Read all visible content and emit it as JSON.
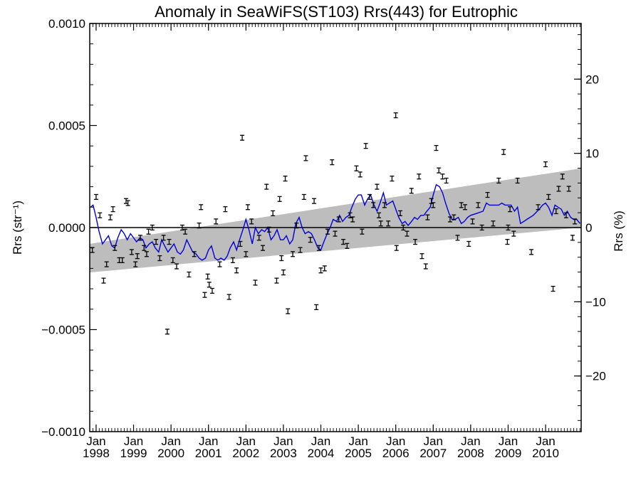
{
  "chart_data": {
    "type": "scatter",
    "title": "Anomaly in SeaWiFS(ST103) Rrs(443) for Eutrophic",
    "ylabel_left": "Rrs (str⁻¹)",
    "ylabel_right": "Rrs (%)",
    "xlim": [
      1997.83,
      2010.95
    ],
    "ylim_left": [
      -0.001,
      0.001
    ],
    "ylim_right": [
      -27.5,
      27.5
    ],
    "left_ticks": [
      {
        "value": 0.001,
        "label": "0.0010"
      },
      {
        "value": 0.0005,
        "label": "0.0005"
      },
      {
        "value": 0.0,
        "label": "0.0000"
      },
      {
        "value": -0.0005,
        "label": "−0.0005"
      },
      {
        "value": -0.001,
        "label": "−0.0010"
      }
    ],
    "right_ticks": [
      {
        "value": 20,
        "label": "20"
      },
      {
        "value": 10,
        "label": "10"
      },
      {
        "value": 0,
        "label": "0"
      },
      {
        "value": -10,
        "label": "−10"
      },
      {
        "value": -20,
        "label": "−20"
      }
    ],
    "x_ticks": [
      {
        "value": 1998,
        "month": "Jan",
        "year": "1998"
      },
      {
        "value": 1999,
        "month": "Jan",
        "year": "1999"
      },
      {
        "value": 2000,
        "month": "Jan",
        "year": "2000"
      },
      {
        "value": 2001,
        "month": "Jan",
        "year": "2001"
      },
      {
        "value": 2002,
        "month": "Jan",
        "year": "2002"
      },
      {
        "value": 2003,
        "month": "Jan",
        "year": "2003"
      },
      {
        "value": 2004,
        "month": "Jan",
        "year": "2004"
      },
      {
        "value": 2005,
        "month": "Jan",
        "year": "2005"
      },
      {
        "value": 2006,
        "month": "Jan",
        "year": "2006"
      },
      {
        "value": 2007,
        "month": "Jan",
        "year": "2007"
      },
      {
        "value": 2008,
        "month": "Jan",
        "year": "2008"
      },
      {
        "value": 2009,
        "month": "Jan",
        "year": "2009"
      },
      {
        "value": 2010,
        "month": "Jan",
        "year": "2010"
      }
    ],
    "trend_band": {
      "x": [
        1997.83,
        2010.95
      ],
      "lower": [
        -0.00022,
        0.0
      ],
      "upper": [
        -8e-05,
        0.00029
      ],
      "color": "#bdbdbd"
    },
    "zero_line": 0.0,
    "points": [
      [
        1997.9,
        -0.00011
      ],
      [
        1998.0,
        0.00015
      ],
      [
        1998.1,
        6e-05
      ],
      [
        1998.2,
        -0.00026
      ],
      [
        1998.28,
        -0.00018
      ],
      [
        1998.38,
        5e-05
      ],
      [
        1998.45,
        9e-05
      ],
      [
        1998.5,
        -0.0001
      ],
      [
        1998.62,
        -0.00016
      ],
      [
        1998.7,
        -0.00016
      ],
      [
        1998.8,
        0.00013
      ],
      [
        1998.85,
        0.00012
      ],
      [
        1998.95,
        -0.00012
      ],
      [
        1999.05,
        -0.00018
      ],
      [
        1999.1,
        -0.00014
      ],
      [
        1999.18,
        -5e-05
      ],
      [
        1999.28,
        -0.0001
      ],
      [
        1999.35,
        -0.00013
      ],
      [
        1999.4,
        -2e-05
      ],
      [
        1999.5,
        0.0
      ],
      [
        1999.6,
        -7e-05
      ],
      [
        1999.7,
        -0.00015
      ],
      [
        1999.8,
        -5e-05
      ],
      [
        1999.9,
        -0.00051
      ],
      [
        1999.95,
        -7e-05
      ],
      [
        2000.05,
        -0.00016
      ],
      [
        2000.15,
        -0.00019
      ],
      [
        2000.3,
        0.0
      ],
      [
        2000.38,
        -2e-05
      ],
      [
        2000.48,
        -0.00023
      ],
      [
        2000.62,
        -0.00013
      ],
      [
        2000.75,
        1e-05
      ],
      [
        2000.8,
        0.0001
      ],
      [
        2000.9,
        -0.00033
      ],
      [
        2000.98,
        -0.00024
      ],
      [
        2001.02,
        -0.00028
      ],
      [
        2001.1,
        -0.00031
      ],
      [
        2001.2,
        3e-05
      ],
      [
        2001.3,
        -0.00018
      ],
      [
        2001.45,
        9e-05
      ],
      [
        2001.55,
        -0.00034
      ],
      [
        2001.65,
        -0.00016
      ],
      [
        2001.75,
        -0.00021
      ],
      [
        2001.85,
        -8e-05
      ],
      [
        2001.9,
        0.00044
      ],
      [
        2002.0,
        -0.00013
      ],
      [
        2002.05,
        0.0001
      ],
      [
        2002.15,
        3e-05
      ],
      [
        2002.25,
        -0.00027
      ],
      [
        2002.35,
        -5e-05
      ],
      [
        2002.45,
        -0.0001
      ],
      [
        2002.55,
        0.0002
      ],
      [
        2002.62,
        -1e-05
      ],
      [
        2002.72,
        7e-05
      ],
      [
        2002.82,
        -0.00026
      ],
      [
        2002.9,
        0.00014
      ],
      [
        2002.95,
        -0.00015
      ],
      [
        2003.0,
        -0.00022
      ],
      [
        2003.05,
        0.00024
      ],
      [
        2003.12,
        -0.00041
      ],
      [
        2003.25,
        -0.00013
      ],
      [
        2003.35,
        1e-05
      ],
      [
        2003.45,
        -0.00011
      ],
      [
        2003.55,
        0.00015
      ],
      [
        2003.6,
        0.00034
      ],
      [
        2003.72,
        -6e-05
      ],
      [
        2003.82,
        0.00013
      ],
      [
        2003.88,
        -0.00039
      ],
      [
        2003.95,
        -0.0001
      ],
      [
        2004.0,
        -0.00021
      ],
      [
        2004.1,
        -0.0002
      ],
      [
        2004.18,
        -2e-05
      ],
      [
        2004.3,
        0.00032
      ],
      [
        2004.38,
        -3e-05
      ],
      [
        2004.48,
        4e-05
      ],
      [
        2004.6,
        -7e-05
      ],
      [
        2004.7,
        -9e-05
      ],
      [
        2004.78,
        6e-05
      ],
      [
        2004.85,
        4e-05
      ],
      [
        2004.95,
        0.00029
      ],
      [
        2005.05,
        0.00026
      ],
      [
        2005.1,
        -2e-05
      ],
      [
        2005.2,
        0.0004
      ],
      [
        2005.3,
        0.00015
      ],
      [
        2005.4,
        0.00011
      ],
      [
        2005.5,
        0.0002
      ],
      [
        2005.55,
        6e-05
      ],
      [
        2005.6,
        2e-05
      ],
      [
        2005.7,
        0.00011
      ],
      [
        2005.8,
        2e-05
      ],
      [
        2005.9,
        0.00024
      ],
      [
        2006.0,
        0.00055
      ],
      [
        2006.02,
        -0.0001
      ],
      [
        2006.12,
        7e-05
      ],
      [
        2006.2,
        0.0
      ],
      [
        2006.3,
        -3e-05
      ],
      [
        2006.42,
        0.00018
      ],
      [
        2006.52,
        -7e-05
      ],
      [
        2006.62,
        0.00025
      ],
      [
        2006.7,
        -0.00014
      ],
      [
        2006.8,
        -0.00019
      ],
      [
        2006.85,
        5e-05
      ],
      [
        2006.95,
        0.00013
      ],
      [
        2007.0,
        0.00011
      ],
      [
        2007.08,
        0.00039
      ],
      [
        2007.15,
        0.00028
      ],
      [
        2007.25,
        0.00025
      ],
      [
        2007.35,
        0.00023
      ],
      [
        2007.45,
        4e-05
      ],
      [
        2007.55,
        5e-05
      ],
      [
        2007.65,
        -5e-05
      ],
      [
        2007.75,
        0.00011
      ],
      [
        2007.85,
        0.0001
      ],
      [
        2007.95,
        -8e-05
      ],
      [
        2008.05,
        3e-05
      ],
      [
        2008.2,
        0.00011
      ],
      [
        2008.3,
        0.0
      ],
      [
        2008.45,
        0.00016
      ],
      [
        2008.6,
        2e-05
      ],
      [
        2008.75,
        0.00023
      ],
      [
        2008.88,
        0.00037
      ],
      [
        2008.98,
        -7e-05
      ],
      [
        2009.0,
        0.0
      ],
      [
        2009.05,
        9e-05
      ],
      [
        2009.15,
        -3e-05
      ],
      [
        2009.25,
        0.00023
      ],
      [
        2009.62,
        -0.00012
      ],
      [
        2009.8,
        0.0001
      ],
      [
        2010.0,
        0.00031
      ],
      [
        2010.08,
        0.00015
      ],
      [
        2010.2,
        -0.0003
      ],
      [
        2010.28,
        8e-05
      ],
      [
        2010.35,
        0.00019
      ],
      [
        2010.45,
        0.00025
      ],
      [
        2010.55,
        6e-05
      ],
      [
        2010.62,
        0.00019
      ],
      [
        2010.72,
        -5e-05
      ],
      [
        2010.78,
        3e-05
      ]
    ],
    "running_mean": [
      [
        1997.85,
        0.0001
      ],
      [
        1997.92,
        0.00011
      ],
      [
        1998.0,
        5e-05
      ],
      [
        1998.08,
        -2e-05
      ],
      [
        1998.17,
        -8e-05
      ],
      [
        1998.25,
        -6e-05
      ],
      [
        1998.33,
        -4e-05
      ],
      [
        1998.42,
        -9e-05
      ],
      [
        1998.5,
        -0.0001
      ],
      [
        1998.58,
        -5e-05
      ],
      [
        1998.67,
        -1e-05
      ],
      [
        1998.75,
        -3e-05
      ],
      [
        1998.83,
        -6e-05
      ],
      [
        1998.92,
        -3e-05
      ],
      [
        1999.0,
        -5e-05
      ],
      [
        1999.08,
        -7e-05
      ],
      [
        1999.17,
        -5e-05
      ],
      [
        1999.25,
        -6e-05
      ],
      [
        1999.33,
        -0.0001
      ],
      [
        1999.42,
        -8e-05
      ],
      [
        1999.5,
        -7e-05
      ],
      [
        1999.58,
        -0.0001
      ],
      [
        1999.67,
        -0.00012
      ],
      [
        1999.75,
        -6e-05
      ],
      [
        1999.83,
        -9e-05
      ],
      [
        1999.92,
        -0.00012
      ],
      [
        2000.0,
        -0.0001
      ],
      [
        2000.08,
        -8e-05
      ],
      [
        2000.17,
        -0.00012
      ],
      [
        2000.25,
        -0.00013
      ],
      [
        2000.33,
        -0.00011
      ],
      [
        2000.42,
        -6e-05
      ],
      [
        2000.5,
        -9e-05
      ],
      [
        2000.58,
        -0.00012
      ],
      [
        2000.67,
        -0.00013
      ],
      [
        2000.75,
        -0.00015
      ],
      [
        2000.83,
        -0.00016
      ],
      [
        2000.92,
        -0.00015
      ],
      [
        2001.0,
        -0.00011
      ],
      [
        2001.08,
        -9e-05
      ],
      [
        2001.17,
        -0.00015
      ],
      [
        2001.25,
        -0.00016
      ],
      [
        2001.33,
        -0.00015
      ],
      [
        2001.42,
        -0.00016
      ],
      [
        2001.5,
        -0.00014
      ],
      [
        2001.58,
        -0.0001
      ],
      [
        2001.67,
        -7e-05
      ],
      [
        2001.75,
        -0.00011
      ],
      [
        2001.83,
        -6e-05
      ],
      [
        2001.92,
        -1e-05
      ],
      [
        2002.0,
        4e-05
      ],
      [
        2002.08,
        -1e-05
      ],
      [
        2002.17,
        -8e-05
      ],
      [
        2002.25,
        0.0
      ],
      [
        2002.33,
        -3e-05
      ],
      [
        2002.42,
        -1e-05
      ],
      [
        2002.5,
        -2e-05
      ],
      [
        2002.58,
        0.0
      ],
      [
        2002.67,
        -6e-05
      ],
      [
        2002.75,
        -4e-05
      ],
      [
        2002.83,
        -1e-05
      ],
      [
        2002.92,
        -6e-05
      ],
      [
        2003.0,
        -6e-05
      ],
      [
        2003.08,
        -4e-05
      ],
      [
        2003.17,
        -8e-05
      ],
      [
        2003.25,
        -6e-05
      ],
      [
        2003.33,
        2e-05
      ],
      [
        2003.42,
        5e-05
      ],
      [
        2003.5,
        0.0
      ],
      [
        2003.58,
        -3e-05
      ],
      [
        2003.67,
        -2e-05
      ],
      [
        2003.75,
        -3e-05
      ],
      [
        2003.83,
        -6e-05
      ],
      [
        2003.92,
        -0.0001
      ],
      [
        2004.0,
        -0.00011
      ],
      [
        2004.08,
        -7e-05
      ],
      [
        2004.17,
        -3e-05
      ],
      [
        2004.25,
        0.0
      ],
      [
        2004.33,
        4e-05
      ],
      [
        2004.42,
        3e-05
      ],
      [
        2004.5,
        6e-05
      ],
      [
        2004.58,
        3e-05
      ],
      [
        2004.67,
        5e-05
      ],
      [
        2004.75,
        6e-05
      ],
      [
        2004.83,
        0.0001
      ],
      [
        2004.92,
        0.00014
      ],
      [
        2005.0,
        0.00016
      ],
      [
        2005.08,
        0.00016
      ],
      [
        2005.17,
        0.00011
      ],
      [
        2005.25,
        0.00014
      ],
      [
        2005.33,
        0.00016
      ],
      [
        2005.42,
        0.00011
      ],
      [
        2005.5,
        8e-05
      ],
      [
        2005.58,
        0.00012
      ],
      [
        2005.67,
        0.00017
      ],
      [
        2005.75,
        0.00011
      ],
      [
        2005.83,
        0.00012
      ],
      [
        2005.92,
        0.00013
      ],
      [
        2006.0,
        9e-05
      ],
      [
        2006.08,
        5e-05
      ],
      [
        2006.17,
        2e-05
      ],
      [
        2006.25,
        3e-05
      ],
      [
        2006.33,
        1e-05
      ],
      [
        2006.42,
        3e-05
      ],
      [
        2006.5,
        5e-05
      ],
      [
        2006.58,
        4e-05
      ],
      [
        2006.67,
        6e-05
      ],
      [
        2006.75,
        6e-05
      ],
      [
        2006.83,
        8e-05
      ],
      [
        2006.92,
        0.0001
      ],
      [
        2007.0,
        0.00016
      ],
      [
        2007.08,
        0.00021
      ],
      [
        2007.17,
        0.0002
      ],
      [
        2007.25,
        0.00017
      ],
      [
        2007.33,
        0.00012
      ],
      [
        2007.42,
        7e-05
      ],
      [
        2007.5,
        4e-05
      ],
      [
        2007.58,
        4e-05
      ],
      [
        2007.67,
        5e-05
      ],
      [
        2007.75,
        2e-05
      ],
      [
        2007.83,
        3e-05
      ],
      [
        2007.92,
        5e-05
      ],
      [
        2008.0,
        6e-05
      ],
      [
        2008.17,
        7e-05
      ],
      [
        2008.33,
        8e-05
      ],
      [
        2008.42,
        0.00012
      ],
      [
        2008.5,
        0.00011
      ],
      [
        2008.58,
        0.00011
      ],
      [
        2008.67,
        0.00011
      ],
      [
        2008.75,
        0.00011
      ],
      [
        2008.83,
        0.00012
      ],
      [
        2008.92,
        0.00011
      ],
      [
        2009.0,
        0.00011
      ],
      [
        2009.08,
        0.00011
      ],
      [
        2009.17,
        8e-05
      ],
      [
        2009.25,
        0.0001
      ],
      [
        2009.33,
        2e-05
      ],
      [
        2009.42,
        3e-05
      ],
      [
        2009.5,
        4e-05
      ],
      [
        2009.67,
        6e-05
      ],
      [
        2009.83,
        9e-05
      ],
      [
        2009.92,
        0.00011
      ],
      [
        2010.0,
        0.00012
      ],
      [
        2010.08,
        0.0001
      ],
      [
        2010.17,
        6e-05
      ],
      [
        2010.25,
        0.00011
      ],
      [
        2010.33,
        0.0001
      ],
      [
        2010.42,
        9e-05
      ],
      [
        2010.5,
        6e-05
      ],
      [
        2010.58,
        8e-05
      ],
      [
        2010.67,
        5e-05
      ],
      [
        2010.75,
        4e-05
      ],
      [
        2010.83,
        4e-05
      ],
      [
        2010.92,
        2e-05
      ]
    ],
    "error_bar_halfwidth": 1.2e-05,
    "colors": {
      "points": "#000000",
      "running_mean": "#0000dd",
      "band": "#bdbdbd",
      "axes": "#000000"
    },
    "grid": false
  }
}
